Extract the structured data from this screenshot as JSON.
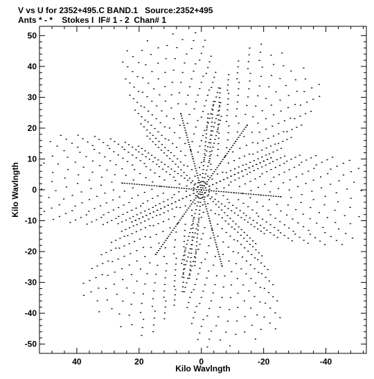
{
  "header": {
    "line1": "V vs U for 2352+495.C BAND.1   Source:2352+495",
    "line2": "Ants * - *    Stokes I  IF# 1 - 2  Chan# 1"
  },
  "chart_data": {
    "type": "scatter",
    "title": "V vs U for 2352+495.C BAND.1   Source:2352+495",
    "subtitle": "Ants * - *    Stokes I  IF# 1 - 2  Chan# 1",
    "xlabel": "Kilo Wavlngth",
    "ylabel": "Kilo Wavlngth",
    "xlim": [
      52,
      -53
    ],
    "ylim": [
      -53,
      53
    ],
    "x_reversed": true,
    "x_ticks": [
      40,
      20,
      0,
      -20,
      -40
    ],
    "y_ticks": [
      50,
      40,
      30,
      20,
      10,
      0,
      -10,
      -20,
      -30,
      -40,
      -50
    ],
    "grid": false,
    "marker": "tiny dash pairs",
    "pattern": {
      "description": "six-armed star uv-coverage of hexagonal concentric arcs with spokes at 75, 5, -55 degrees",
      "spoke_angles_deg": [
        75,
        5,
        -55
      ],
      "max_radius": 52
    },
    "sample_points": [
      {
        "u": 8,
        "v": 50
      },
      {
        "u": 5,
        "v": 45
      },
      {
        "u": 2,
        "v": 40
      },
      {
        "u": -28,
        "v": 30
      },
      {
        "u": -36,
        "v": 28
      },
      {
        "u": -38,
        "v": 25
      },
      {
        "u": 50,
        "v": 21
      },
      {
        "u": 45,
        "v": 22
      },
      {
        "u": 40,
        "v": 15
      },
      {
        "u": -50,
        "v": -21
      },
      {
        "u": -45,
        "v": -22
      },
      {
        "u": -40,
        "v": -15
      },
      {
        "u": 38,
        "v": -28
      },
      {
        "u": 36,
        "v": -30
      },
      {
        "u": 28,
        "v": -30
      },
      {
        "u": -8,
        "v": -50
      },
      {
        "u": -5,
        "v": -45
      },
      {
        "u": -2,
        "v": -40
      },
      {
        "u": 0,
        "v": 0
      },
      {
        "u": 10,
        "v": 15
      },
      {
        "u": -10,
        "v": -15
      }
    ]
  }
}
